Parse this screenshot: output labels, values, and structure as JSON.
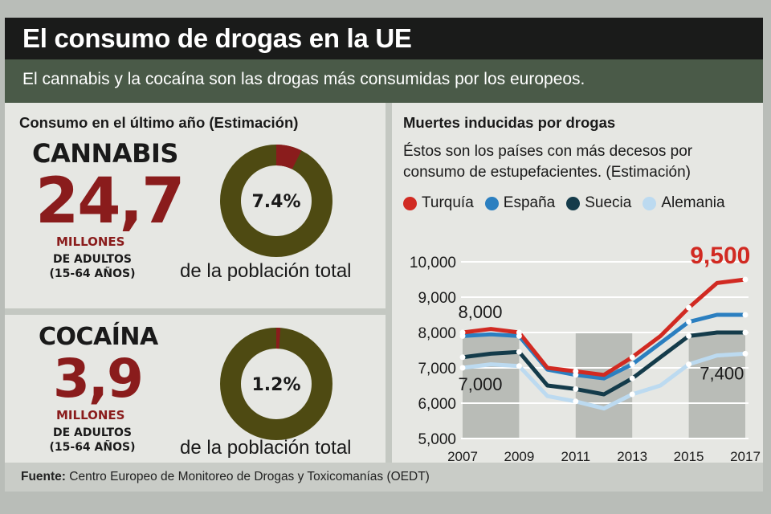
{
  "header": {
    "title": "El consumo de drogas en la UE",
    "subtitle": "El cannabis y la cocaína son las drogas más consumidas por los europeos."
  },
  "consumption": {
    "section_title": "Consumo en el último año (Estimación)",
    "cannabis": {
      "name": "CANNABIS",
      "value": "24,7",
      "unit": "MILLONES",
      "adults_line1": "DE ADULTOS",
      "adults_line2": "(15-64 AÑOS)",
      "percent": 7.4,
      "percent_label": "7.4%",
      "pop_text": "de la población total"
    },
    "cocaine": {
      "name": "COCAÍNA",
      "value": "3,9",
      "unit": "MILLONES",
      "adults_line1": "DE ADULTOS",
      "adults_line2": "(15-64 AÑOS)",
      "percent": 1.2,
      "percent_label": "1.2%",
      "pop_text": "de la población total"
    },
    "colors": {
      "ring": "#4e4a12",
      "slice": "#8a1c1c"
    }
  },
  "chart_data": {
    "type": "line",
    "title": "Muertes inducidas por drogas",
    "subtitle": "Éstos son los países con más decesos por consumo de estupefacientes. (Estimación)",
    "x": [
      2007,
      2008,
      2009,
      2010,
      2011,
      2012,
      2013,
      2014,
      2015,
      2016,
      2017
    ],
    "x_tick_labels": [
      "2007",
      "2009",
      "2011",
      "2013",
      "2015",
      "2017"
    ],
    "y_tick_labels": [
      "10,000",
      "9,000",
      "8,000",
      "7,000",
      "6,000",
      "5,000"
    ],
    "ylim": [
      5000,
      10000
    ],
    "series": [
      {
        "name": "Turquía",
        "color": "#d12a22",
        "values": [
          8000,
          8100,
          8000,
          7000,
          6900,
          6800,
          7300,
          7900,
          8700,
          9400,
          9500
        ]
      },
      {
        "name": "España",
        "color": "#2b7fc0",
        "values": [
          7900,
          7950,
          7900,
          6950,
          6800,
          6700,
          7100,
          7700,
          8300,
          8500,
          8500
        ]
      },
      {
        "name": "Suecia",
        "color": "#143b4a",
        "values": [
          7300,
          7400,
          7450,
          6500,
          6400,
          6250,
          6700,
          7300,
          7900,
          8000,
          8000
        ]
      },
      {
        "name": "Alemania",
        "color": "#bcdaf0",
        "values": [
          7000,
          7100,
          7050,
          6200,
          6050,
          5850,
          6250,
          6500,
          7100,
          7350,
          7400
        ]
      }
    ],
    "annotations": [
      {
        "label": "8,000",
        "value": 8000
      },
      {
        "label": "7,000",
        "value": 7000
      },
      {
        "label": "9,500",
        "value": 9500
      },
      {
        "label": "7,400",
        "value": 7400
      }
    ],
    "colors": {
      "grid": "#ffffff",
      "band": "#b9bcb7",
      "axis_text": "#1a1a1a"
    }
  },
  "footer": {
    "source_label": "Fuente:",
    "source_text": "Centro Europeo de Monitoreo de Drogas y Toxicomanías (OEDT)"
  }
}
